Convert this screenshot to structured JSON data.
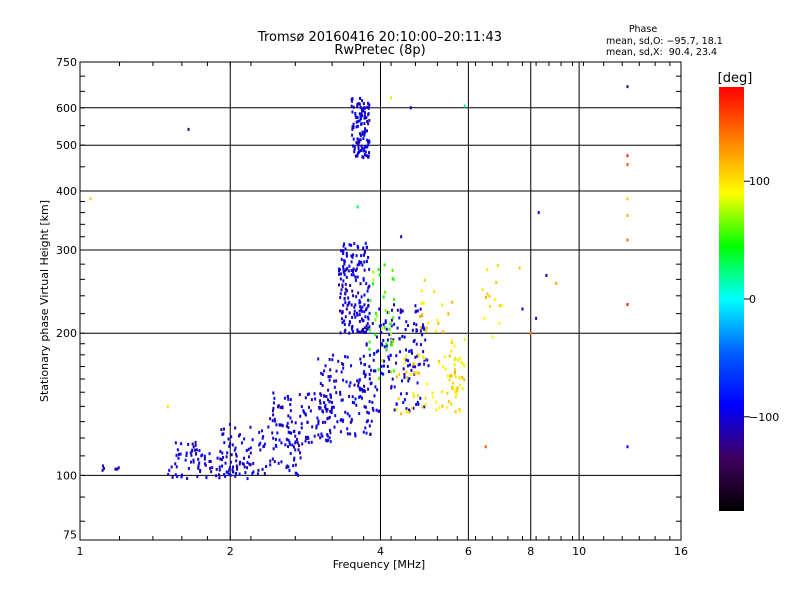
{
  "chart_data": {
    "type": "scatter",
    "title": "Tromsø 20160416 20:10:00–20:11:43",
    "subtitle": "RwPretec (8p)",
    "xlabel": "Frequency [MHz]",
    "ylabel": "Stationary phase Virtual Height [km]",
    "xscale": "log",
    "yscale": "log",
    "xlim": [
      1,
      16
    ],
    "ylim": [
      73,
      750
    ],
    "x_ticks": [
      1,
      2,
      4,
      6,
      8,
      10,
      16
    ],
    "x_tick_labels": [
      "1",
      "2",
      "4",
      "6",
      "8",
      "10",
      "16"
    ],
    "y_ticks": [
      75,
      100,
      200,
      300,
      400,
      500,
      600,
      750
    ],
    "y_tick_labels": [
      "75",
      "100",
      "200",
      "300",
      "400",
      "500",
      "600",
      "750"
    ],
    "grid": true,
    "stats": {
      "heading": "Phase",
      "o_line": "mean, sd,O: −95.7, 18.1",
      "x_line": "mean, sd,X:  90.4, 23.4"
    },
    "colorbar": {
      "label": "[deg]",
      "range": [
        -180,
        180
      ],
      "ticks": [
        100,
        0,
        -100
      ],
      "tick_labels": [
        "100",
        "0",
        "−100"
      ],
      "colors": [
        "#ff0000",
        "#ff8000",
        "#ffff00",
        "#00ff00",
        "#00ffff",
        "#0060ff",
        "#0000ff",
        "#400060",
        "#000000"
      ]
    },
    "series": [
      {
        "clusters": [
          {
            "x_range": [
              1.1,
              1.25
            ],
            "h_range": [
              100,
              105
            ],
            "count": 6,
            "phase": -100
          },
          {
            "x_range": [
              1.5,
              2.2
            ],
            "h_range": [
              98,
              112
            ],
            "count": 70,
            "phase": -100
          },
          {
            "x_range": [
              1.55,
              1.75
            ],
            "h_range": [
              110,
              118
            ],
            "count": 18,
            "phase": -100
          },
          {
            "x_range": [
              1.9,
              2.8
            ],
            "h_range": [
              100,
              130
            ],
            "count": 110,
            "phase": -100
          },
          {
            "x_range": [
              2.4,
              3.2
            ],
            "h_range": [
              115,
              150
            ],
            "count": 110,
            "phase": -100
          },
          {
            "x_range": [
              3.0,
              3.9
            ],
            "h_range": [
              120,
              180
            ],
            "count": 120,
            "phase": -100
          },
          {
            "x_range": [
              3.3,
              3.8
            ],
            "h_range": [
              200,
              310
            ],
            "count": 170,
            "phase": -100
          },
          {
            "x_range": [
              3.6,
              4.9
            ],
            "h_range": [
              135,
              230
            ],
            "count": 120,
            "phase": -100
          },
          {
            "x_range": [
              3.5,
              3.8
            ],
            "h_range": [
              470,
              630
            ],
            "count": 120,
            "phase": -100
          },
          {
            "x_range": [
              4.0,
              5.0
            ],
            "h_range": [
              170,
              210
            ],
            "count": 45,
            "phase": -100
          }
        ]
      },
      {
        "clusters": [
          {
            "x_range": [
              4.3,
              5.8
            ],
            "h_range": [
              135,
              180
            ],
            "count": 60,
            "phase": 100
          },
          {
            "x_range": [
              5.5,
              5.9
            ],
            "h_range": [
              150,
              195
            ],
            "count": 30,
            "phase": 100
          },
          {
            "x_range": [
              4.8,
              5.6
            ],
            "h_range": [
              200,
              260
            ],
            "count": 18,
            "phase": 100
          },
          {
            "x_range": [
              6.3,
              7.0
            ],
            "h_range": [
              190,
              280
            ],
            "count": 14,
            "phase": 100
          },
          {
            "x_range": [
              3.8,
              4.3
            ],
            "h_range": [
              160,
              280
            ],
            "count": 40,
            "phase": 60
          }
        ]
      }
    ],
    "isolated_points": [
      {
        "x": 1.05,
        "h": 385,
        "phase": 110
      },
      {
        "x": 1.65,
        "h": 540,
        "phase": -120
      },
      {
        "x": 1.5,
        "h": 140,
        "phase": 100
      },
      {
        "x": 12.5,
        "h": 665,
        "phase": -120
      },
      {
        "x": 12.5,
        "h": 475,
        "phase": 170
      },
      {
        "x": 12.5,
        "h": 455,
        "phase": 150
      },
      {
        "x": 12.5,
        "h": 385,
        "phase": 110
      },
      {
        "x": 12.5,
        "h": 355,
        "phase": 120
      },
      {
        "x": 12.5,
        "h": 315,
        "phase": 140
      },
      {
        "x": 12.5,
        "h": 230,
        "phase": 170
      },
      {
        "x": 12.5,
        "h": 115,
        "phase": -90
      },
      {
        "x": 6.5,
        "h": 115,
        "phase": 150
      },
      {
        "x": 8.3,
        "h": 360,
        "phase": -90
      },
      {
        "x": 4.4,
        "h": 320,
        "phase": -100
      },
      {
        "x": 3.6,
        "h": 370,
        "phase": 30
      },
      {
        "x": 9.0,
        "h": 255,
        "phase": 120
      },
      {
        "x": 8.6,
        "h": 265,
        "phase": -110
      },
      {
        "x": 8.0,
        "h": 200,
        "phase": 140
      },
      {
        "x": 7.7,
        "h": 225,
        "phase": -100
      },
      {
        "x": 8.2,
        "h": 215,
        "phase": -100
      },
      {
        "x": 7.6,
        "h": 275,
        "phase": 110
      },
      {
        "x": 5.9,
        "h": 605,
        "phase": 20
      },
      {
        "x": 4.6,
        "h": 600,
        "phase": -100
      },
      {
        "x": 4.2,
        "h": 630,
        "phase": 80
      }
    ]
  }
}
